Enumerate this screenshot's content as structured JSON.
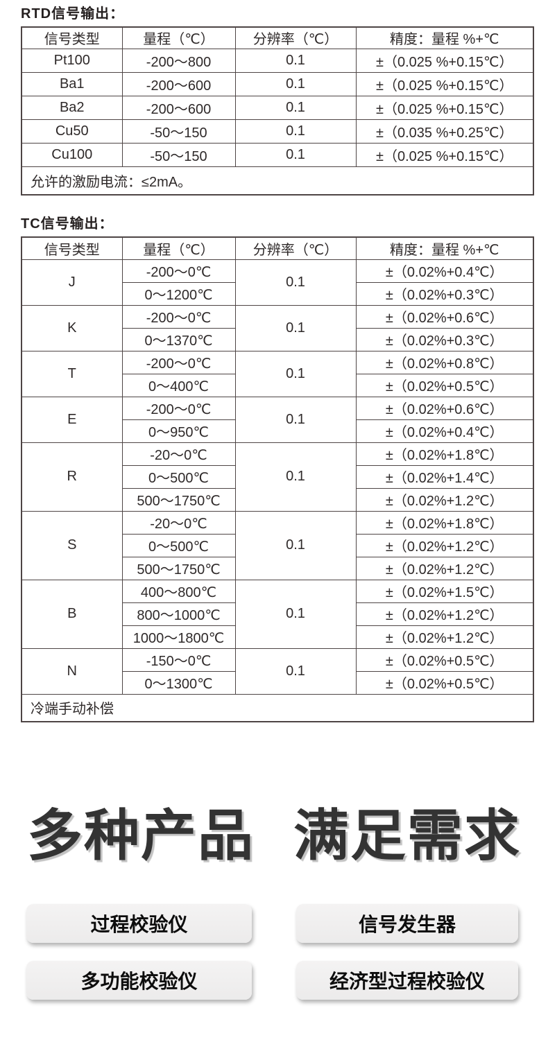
{
  "colors": {
    "table_border": "#4d4444",
    "table_text": "#2e2929",
    "heading_text": "#333333",
    "heading_shadow": "#c2c2c2",
    "button_bg": "#efeeee",
    "page_bg": "#ffffff"
  },
  "rtd": {
    "title": "RTD信号输出：",
    "table": {
      "headers": [
        "信号类型",
        "量程（℃）",
        "分辨率（℃）",
        "精度：量程 %+℃"
      ],
      "rows": [
        [
          "Pt100",
          "-200～800",
          "0.1",
          "±（0.025 %+0.15℃）"
        ],
        [
          "Ba1",
          "-200～600",
          "0.1",
          "±（0.025 %+0.15℃）"
        ],
        [
          "Ba2",
          "-200～600",
          "0.1",
          "±（0.025 %+0.15℃）"
        ],
        [
          "Cu50",
          "-50～150",
          "0.1",
          "±（0.035 %+0.25℃）"
        ],
        [
          "Cu100",
          "-50～150",
          "0.1",
          "±（0.025 %+0.15℃）"
        ]
      ],
      "footer": "允许的激励电流：≤2mA。"
    }
  },
  "tc": {
    "title": "TC信号输出：",
    "table": {
      "headers": [
        "信号类型",
        "量程（℃）",
        "分辨率（℃）",
        "精度：量程 %+℃"
      ],
      "groups": [
        {
          "type": "J",
          "resolution": "0.1",
          "ranges": [
            "-200～0℃",
            "0～1200℃"
          ],
          "accuracies": [
            "±（0.02%+0.4℃）",
            "±（0.02%+0.3℃）"
          ]
        },
        {
          "type": "K",
          "resolution": "0.1",
          "ranges": [
            "-200～0℃",
            "0～1370℃"
          ],
          "accuracies": [
            "±（0.02%+0.6℃）",
            "±（0.02%+0.3℃）"
          ]
        },
        {
          "type": "T",
          "resolution": "0.1",
          "ranges": [
            "-200～0℃",
            "0～400℃"
          ],
          "accuracies": [
            "±（0.02%+0.8℃）",
            "±（0.02%+0.5℃）"
          ]
        },
        {
          "type": "E",
          "resolution": "0.1",
          "ranges": [
            "-200～0℃",
            "0～950℃"
          ],
          "accuracies": [
            "±（0.02%+0.6℃）",
            "±（0.02%+0.4℃）"
          ]
        },
        {
          "type": "R",
          "resolution": "0.1",
          "ranges": [
            "-20～0℃",
            "0～500℃",
            "500～1750℃"
          ],
          "accuracies": [
            "±（0.02%+1.8℃）",
            "±（0.02%+1.4℃）",
            "±（0.02%+1.2℃）"
          ]
        },
        {
          "type": "S",
          "resolution": "0.1",
          "ranges": [
            "-20～0℃",
            "0～500℃",
            "500～1750℃"
          ],
          "accuracies": [
            "±（0.02%+1.8℃）",
            "±（0.02%+1.2℃）",
            "±（0.02%+1.2℃）"
          ]
        },
        {
          "type": "B",
          "resolution": "0.1",
          "ranges": [
            "400～800℃",
            "800～1000℃",
            "1000～1800℃"
          ],
          "accuracies": [
            "±（0.02%+1.5℃）",
            "±（0.02%+1.2℃）",
            "±（0.02%+1.2℃）"
          ]
        },
        {
          "type": "N",
          "resolution": "0.1",
          "ranges": [
            "-150～0℃",
            "0～1300℃"
          ],
          "accuracies": [
            "±（0.02%+0.5℃）",
            "±（0.02%+0.5℃）"
          ]
        }
      ],
      "footer": "冷端手动补偿"
    }
  },
  "promo": {
    "heading_part1": "多种产品",
    "heading_part2": "满足需求",
    "buttons": [
      "过程校验仪",
      "信号发生器",
      "多功能校验仪",
      "经济型过程校验仪"
    ]
  }
}
